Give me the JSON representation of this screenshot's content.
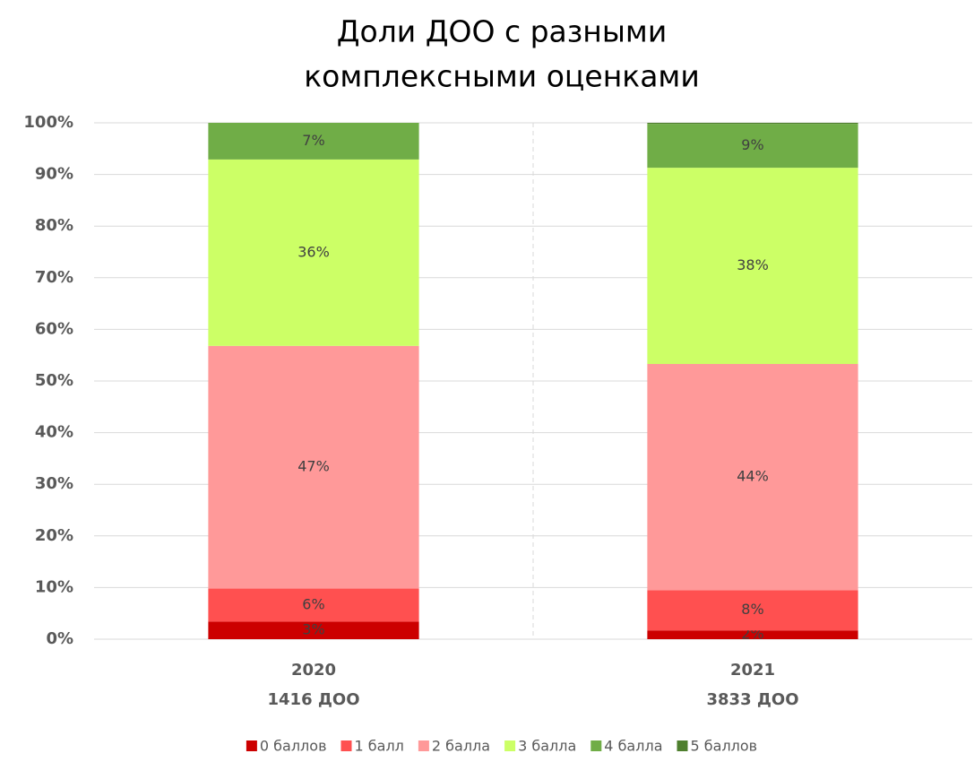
{
  "chart_data": {
    "type": "stacked_bar",
    "title": [
      "Доли ДОО с разными",
      "комплексными оценками"
    ],
    "categories": [
      [
        "2020",
        "1416 ДОО"
      ],
      [
        "2021",
        "3833 ДОО"
      ]
    ],
    "series": [
      {
        "name": "0 баллов",
        "color": "#cc0000",
        "values": [
          3.4,
          1.7
        ],
        "value_labels": [
          "3%",
          "2%"
        ]
      },
      {
        "name": "1 балл",
        "color": "#ff5050",
        "values": [
          6.4,
          7.8
        ],
        "value_labels": [
          "6%",
          "8%"
        ]
      },
      {
        "name": "2 балла",
        "color": "#ff9999",
        "values": [
          47.0,
          43.8
        ],
        "value_labels": [
          "47%",
          "44%"
        ]
      },
      {
        "name": "3 балла",
        "color": "#ccff66",
        "values": [
          36.1,
          38.0
        ],
        "value_labels": [
          "36%",
          "38%"
        ]
      },
      {
        "name": "4 балла",
        "color": "#70ad47",
        "values": [
          7.1,
          8.5
        ],
        "value_labels": [
          "7%",
          "9%"
        ]
      },
      {
        "name": "5 баллов",
        "color": "#4e7f2e",
        "values": [
          0,
          0.2
        ],
        "value_labels": [
          null,
          null
        ]
      }
    ],
    "ylim": [
      0,
      100
    ],
    "yticks": [
      {
        "value": 0,
        "label": "0%"
      },
      {
        "value": 10,
        "label": "10%"
      },
      {
        "value": 20,
        "label": "20%"
      },
      {
        "value": 30,
        "label": "30%"
      },
      {
        "value": 40,
        "label": "40%"
      },
      {
        "value": 50,
        "label": "50%"
      },
      {
        "value": 60,
        "label": "60%"
      },
      {
        "value": 70,
        "label": "70%"
      },
      {
        "value": 80,
        "label": "80%"
      },
      {
        "value": 90,
        "label": "90%"
      },
      {
        "value": 100,
        "label": "100%"
      }
    ],
    "grid": true,
    "legend": "bottom"
  }
}
